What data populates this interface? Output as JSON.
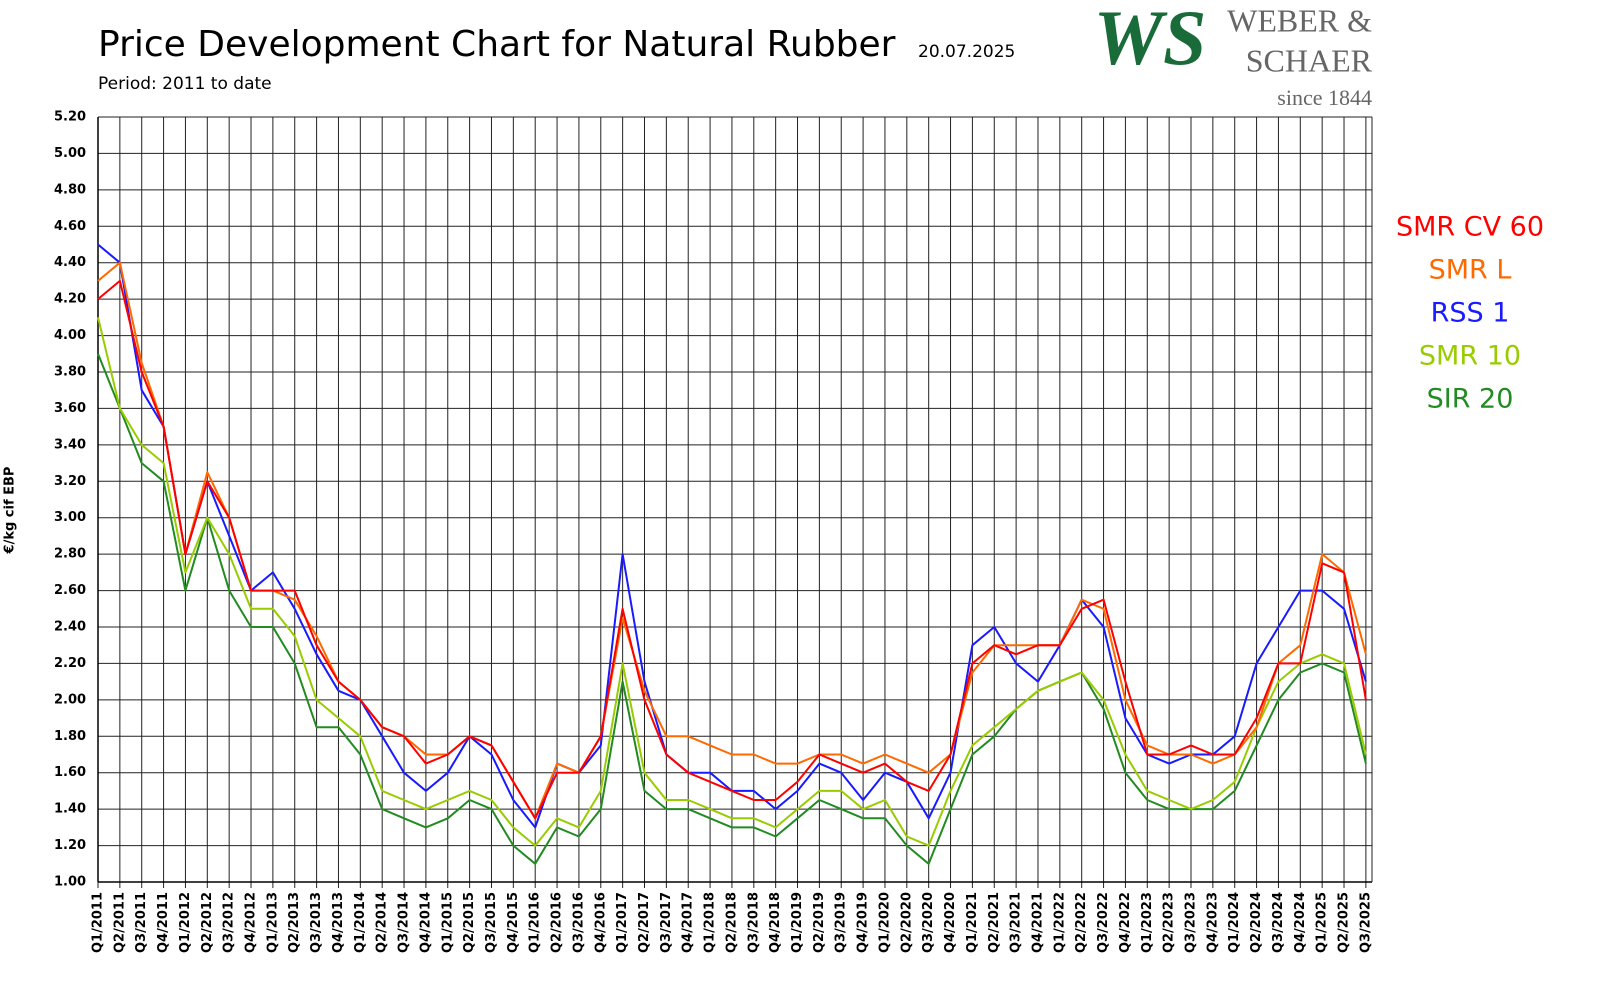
{
  "chart_data": {
    "type": "line",
    "title": "Price Development Chart for Natural Rubber",
    "date": "20.07.2025",
    "subtitle": "Period: 2011 to date",
    "y_label": "€/kg cif EBP",
    "categories": [
      "Q1/2011",
      "Q2/2011",
      "Q3/2011",
      "Q4/2011",
      "Q1/2012",
      "Q2/2012",
      "Q3/2012",
      "Q4/2012",
      "Q1/2013",
      "Q2/2013",
      "Q3/2013",
      "Q4/2013",
      "Q1/2014",
      "Q2/2014",
      "Q3/2014",
      "Q4/2014",
      "Q1/2015",
      "Q2/2015",
      "Q3/2015",
      "Q4/2015",
      "Q1/2016",
      "Q2/2016",
      "Q3/2016",
      "Q4/2016",
      "Q1/2017",
      "Q2/2017",
      "Q3/2017",
      "Q4/2017",
      "Q1/2018",
      "Q2/2018",
      "Q3/2018",
      "Q4/2018",
      "Q1/2019",
      "Q2/2019",
      "Q3/2019",
      "Q4/2019",
      "Q1/2020",
      "Q2/2020",
      "Q3/2020",
      "Q4/2020",
      "Q1/2021",
      "Q2/2021",
      "Q3/2021",
      "Q4/2021",
      "Q1/2022",
      "Q2/2022",
      "Q3/2022",
      "Q4/2022",
      "Q1/2023",
      "Q2/2023",
      "Q3/2023",
      "Q4/2023",
      "Q1/2024",
      "Q2/2024",
      "Q3/2024",
      "Q4/2024",
      "Q1/2025",
      "Q2/2025",
      "Q3/2025"
    ],
    "series": [
      {
        "name": "SMR CV 60",
        "color": "#ff0000",
        "values": [
          4.2,
          4.3,
          3.8,
          3.5,
          2.8,
          3.2,
          3.0,
          2.6,
          2.6,
          2.6,
          2.3,
          2.1,
          2.0,
          1.85,
          1.8,
          1.65,
          1.7,
          1.8,
          1.75,
          1.55,
          1.35,
          1.6,
          1.6,
          1.8,
          2.5,
          2.0,
          1.7,
          1.6,
          1.55,
          1.5,
          1.45,
          1.45,
          1.55,
          1.7,
          1.65,
          1.6,
          1.65,
          1.55,
          1.5,
          1.7,
          2.2,
          2.3,
          2.25,
          2.3,
          2.3,
          2.5,
          2.55,
          2.1,
          1.7,
          1.7,
          1.75,
          1.7,
          1.7,
          1.9,
          2.2,
          2.2,
          2.75,
          2.7,
          2.0
        ]
      },
      {
        "name": "SMR L",
        "color": "#ff6a00",
        "values": [
          4.3,
          4.4,
          3.85,
          3.5,
          2.8,
          3.25,
          3.0,
          2.6,
          2.6,
          2.55,
          2.35,
          2.1,
          2.0,
          1.85,
          1.8,
          1.7,
          1.7,
          1.8,
          1.75,
          1.55,
          1.35,
          1.65,
          1.6,
          1.8,
          2.45,
          2.05,
          1.8,
          1.8,
          1.75,
          1.7,
          1.7,
          1.65,
          1.65,
          1.7,
          1.7,
          1.65,
          1.7,
          1.65,
          1.6,
          1.7,
          2.15,
          2.3,
          2.3,
          2.3,
          2.3,
          2.55,
          2.5,
          2.0,
          1.75,
          1.7,
          1.7,
          1.65,
          1.7,
          1.85,
          2.2,
          2.3,
          2.8,
          2.7,
          2.25
        ]
      },
      {
        "name": "RSS 1",
        "color": "#1a1aff",
        "values": [
          4.5,
          4.4,
          3.7,
          3.5,
          2.8,
          3.2,
          2.9,
          2.6,
          2.7,
          2.5,
          2.25,
          2.05,
          2.0,
          1.8,
          1.6,
          1.5,
          1.6,
          1.8,
          1.7,
          1.45,
          1.3,
          1.65,
          1.6,
          1.75,
          2.8,
          2.1,
          1.7,
          1.6,
          1.6,
          1.5,
          1.5,
          1.4,
          1.5,
          1.65,
          1.6,
          1.45,
          1.6,
          1.55,
          1.35,
          1.6,
          2.3,
          2.4,
          2.2,
          2.1,
          2.3,
          2.55,
          2.4,
          1.9,
          1.7,
          1.65,
          1.7,
          1.7,
          1.8,
          2.2,
          2.4,
          2.6,
          2.6,
          2.5,
          2.1
        ]
      },
      {
        "name": "SMR 10",
        "color": "#99cc00",
        "values": [
          4.1,
          3.6,
          3.4,
          3.3,
          2.7,
          3.0,
          2.8,
          2.5,
          2.5,
          2.35,
          2.0,
          1.9,
          1.8,
          1.5,
          1.45,
          1.4,
          1.45,
          1.5,
          1.45,
          1.3,
          1.2,
          1.35,
          1.3,
          1.5,
          2.2,
          1.6,
          1.45,
          1.45,
          1.4,
          1.35,
          1.35,
          1.3,
          1.4,
          1.5,
          1.5,
          1.4,
          1.45,
          1.25,
          1.2,
          1.5,
          1.75,
          1.85,
          1.95,
          2.05,
          2.1,
          2.15,
          2.0,
          1.7,
          1.5,
          1.45,
          1.4,
          1.45,
          1.55,
          1.85,
          2.1,
          2.2,
          2.25,
          2.2,
          1.7
        ]
      },
      {
        "name": "SIR 20",
        "color": "#228b22",
        "values": [
          3.9,
          3.6,
          3.3,
          3.2,
          2.6,
          3.0,
          2.6,
          2.4,
          2.4,
          2.2,
          1.85,
          1.85,
          1.7,
          1.4,
          1.35,
          1.3,
          1.35,
          1.45,
          1.4,
          1.2,
          1.1,
          1.3,
          1.25,
          1.4,
          2.1,
          1.5,
          1.4,
          1.4,
          1.35,
          1.3,
          1.3,
          1.25,
          1.35,
          1.45,
          1.4,
          1.35,
          1.35,
          1.2,
          1.1,
          1.4,
          1.7,
          1.8,
          1.95,
          2.05,
          2.1,
          2.15,
          1.95,
          1.6,
          1.45,
          1.4,
          1.4,
          1.4,
          1.5,
          1.75,
          2.0,
          2.15,
          2.2,
          2.15,
          1.65
        ]
      }
    ],
    "ylim": [
      1.0,
      5.2
    ],
    "yticks": [
      {
        "value": 1.0,
        "label": "1.00"
      },
      {
        "value": 1.2,
        "label": "1.20"
      },
      {
        "value": 1.4,
        "label": "1.40"
      },
      {
        "value": 1.6,
        "label": "1.60"
      },
      {
        "value": 1.8,
        "label": "1.80"
      },
      {
        "value": 2.0,
        "label": "2.00"
      },
      {
        "value": 2.2,
        "label": "2.20"
      },
      {
        "value": 2.4,
        "label": "2.40"
      },
      {
        "value": 2.6,
        "label": "2.60"
      },
      {
        "value": 2.8,
        "label": "2.80"
      },
      {
        "value": 3.0,
        "label": "3.00"
      },
      {
        "value": 3.2,
        "label": "3.20"
      },
      {
        "value": 3.4,
        "label": "3.40"
      },
      {
        "value": 3.6,
        "label": "3.60"
      },
      {
        "value": 3.8,
        "label": "3.80"
      },
      {
        "value": 4.0,
        "label": "4.00"
      },
      {
        "value": 4.2,
        "label": "4.20"
      },
      {
        "value": 4.4,
        "label": "4.40"
      },
      {
        "value": 4.6,
        "label": "4.60"
      },
      {
        "value": 4.8,
        "label": "4.80"
      },
      {
        "value": 5.0,
        "label": "5.00"
      },
      {
        "value": 5.2,
        "label": "5.20"
      }
    ],
    "grid": true,
    "legend": "right"
  },
  "logo": {
    "mark": "WS",
    "line1": "WEBER &",
    "line2": "SCHAER",
    "tagline": "since 1844"
  }
}
